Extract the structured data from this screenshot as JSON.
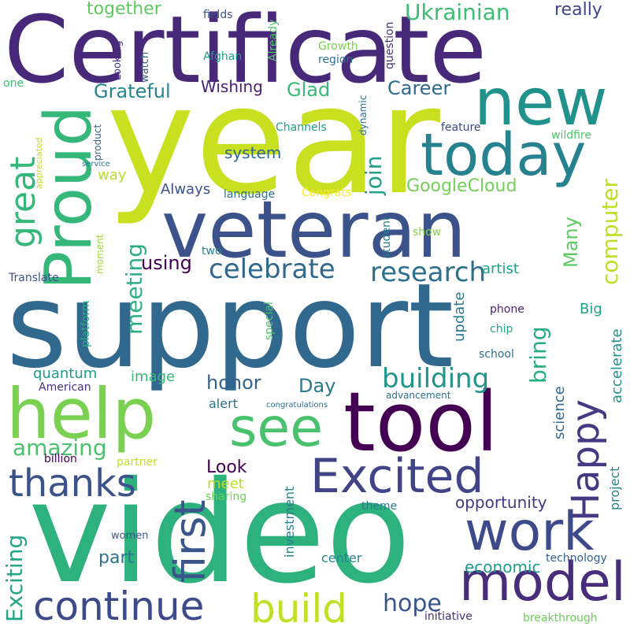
{
  "words": [
    {
      "id": "support",
      "text": "support",
      "color": "#31688e"
    },
    {
      "id": "video",
      "text": "video",
      "color": "#2db27d"
    },
    {
      "id": "year",
      "text": "year",
      "color": "#c8e020"
    },
    {
      "id": "certificate",
      "text": "Certificate",
      "color": "#482878"
    },
    {
      "id": "tool",
      "text": "tool",
      "color": "#440154"
    },
    {
      "id": "veteran",
      "text": "veteran",
      "color": "#3b528b"
    },
    {
      "id": "help",
      "text": "help",
      "color": "#7ad151"
    },
    {
      "id": "new",
      "text": "new",
      "color": "#21918c"
    },
    {
      "id": "proud",
      "text": "Proud",
      "color": "#35b779"
    },
    {
      "id": "today",
      "text": "today",
      "color": "#26828e"
    },
    {
      "id": "model",
      "text": "model",
      "color": "#472d7b"
    },
    {
      "id": "work",
      "text": "work",
      "color": "#3e4a89"
    },
    {
      "id": "excited",
      "text": "Excited",
      "color": "#414487"
    },
    {
      "id": "see",
      "text": "see",
      "color": "#4ac16d"
    },
    {
      "id": "continue",
      "text": "continue",
      "color": "#3e4989"
    },
    {
      "id": "first",
      "text": "first",
      "color": "#3a548c"
    },
    {
      "id": "thanks",
      "text": "thanks",
      "color": "#3b528b"
    },
    {
      "id": "build",
      "text": "build",
      "color": "#c2df23"
    },
    {
      "id": "happy",
      "text": "Happy",
      "color": "#443983"
    },
    {
      "id": "great",
      "text": "great",
      "color": "#35b779"
    },
    {
      "id": "celebrate",
      "text": "celebrate",
      "color": "#31688e"
    },
    {
      "id": "research",
      "text": "research",
      "color": "#2d708e"
    },
    {
      "id": "building",
      "text": "building",
      "color": "#1f958b"
    },
    {
      "id": "computer",
      "text": "computer",
      "color": "#bddf26"
    },
    {
      "id": "meeting",
      "text": "meeting",
      "color": "#2ab07f"
    },
    {
      "id": "ukrainian",
      "text": "Ukrainian",
      "color": "#3dbc74"
    },
    {
      "id": "amazing",
      "text": "amazing",
      "color": "#4ac16d"
    },
    {
      "id": "exciting",
      "text": "Exciting",
      "color": "#21a685"
    },
    {
      "id": "hope",
      "text": "hope",
      "color": "#39568c"
    },
    {
      "id": "bring",
      "text": "bring",
      "color": "#26ad81"
    },
    {
      "id": "join",
      "text": "join",
      "color": "#1fa088"
    },
    {
      "id": "googlecloud",
      "text": "GoogleCloud",
      "color": "#73d056"
    },
    {
      "id": "together",
      "text": "together",
      "color": "#5ec962"
    },
    {
      "id": "really",
      "text": "really",
      "color": "#404688"
    },
    {
      "id": "grateful",
      "text": "Grateful",
      "color": "#25858e"
    },
    {
      "id": "career",
      "text": "Career",
      "color": "#30698e"
    },
    {
      "id": "glad",
      "text": "Glad",
      "color": "#3aba76"
    },
    {
      "id": "many",
      "text": "Many",
      "color": "#5cc863"
    },
    {
      "id": "using",
      "text": "using",
      "color": "#440154"
    },
    {
      "id": "honor",
      "text": "honor",
      "color": "#33638d"
    },
    {
      "id": "day",
      "text": "Day",
      "color": "#2a788e"
    },
    {
      "id": "look",
      "text": "Look",
      "color": "#440154"
    },
    {
      "id": "part",
      "text": "part",
      "color": "#2c738e"
    },
    {
      "id": "opportunity",
      "text": "opportunity",
      "color": "#453781"
    },
    {
      "id": "economic",
      "text": "economic",
      "color": "#1f9a8a"
    },
    {
      "id": "system",
      "text": "system",
      "color": "#31688e"
    },
    {
      "id": "always",
      "text": "Always",
      "color": "#3b528b"
    },
    {
      "id": "quantum",
      "text": "quantum",
      "color": "#1e9c89"
    },
    {
      "id": "wishing",
      "text": "Wishing",
      "color": "#482173"
    },
    {
      "id": "way",
      "text": "way",
      "color": "#b5de2b"
    },
    {
      "id": "update",
      "text": "update",
      "color": "#2a788e"
    },
    {
      "id": "big",
      "text": "Big",
      "color": "#20a386"
    },
    {
      "id": "accelerate",
      "text": "accelerate",
      "color": "#20928c"
    },
    {
      "id": "science",
      "text": "science",
      "color": "#31688e"
    },
    {
      "id": "project",
      "text": "project",
      "color": "#26828e"
    },
    {
      "id": "image",
      "text": "image",
      "color": "#38b977"
    },
    {
      "id": "alert",
      "text": "alert",
      "color": "#2e6e8e"
    },
    {
      "id": "investment",
      "text": "investment",
      "color": "#27808e"
    },
    {
      "id": "meet",
      "text": "meet",
      "color": "#b8de29"
    },
    {
      "id": "center",
      "text": "center",
      "color": "#24878e"
    },
    {
      "id": "technology",
      "text": "technology",
      "color": "#355f8d"
    },
    {
      "id": "artist",
      "text": "artist",
      "color": "#1fa187"
    },
    {
      "id": "translate",
      "text": "Translate",
      "color": "#3b528b"
    },
    {
      "id": "american",
      "text": "American",
      "color": "#46327e"
    },
    {
      "id": "platform",
      "text": "platform",
      "color": "#25ac82"
    },
    {
      "id": "moment",
      "text": "moment",
      "color": "#a2da37"
    },
    {
      "id": "two",
      "text": "two",
      "color": "#26828e"
    },
    {
      "id": "student",
      "text": "student",
      "color": "#2a788e"
    },
    {
      "id": "show",
      "text": "show",
      "color": "#86d549"
    },
    {
      "id": "special",
      "text": "special",
      "color": "#4ec36b"
    },
    {
      "id": "phone",
      "text": "phone",
      "color": "#482173"
    },
    {
      "id": "chip",
      "text": "chip",
      "color": "#20a486"
    },
    {
      "id": "school",
      "text": "school",
      "color": "#2c718e"
    },
    {
      "id": "billion",
      "text": "billion",
      "color": "#440154"
    },
    {
      "id": "partner",
      "text": "partner",
      "color": "#c0df25"
    },
    {
      "id": "sharing",
      "text": "sharing",
      "color": "#6ece58"
    },
    {
      "id": "women",
      "text": "women",
      "color": "#38578c"
    },
    {
      "id": "theme",
      "text": "theme",
      "color": "#2a788e"
    },
    {
      "id": "initiative",
      "text": "initiative",
      "color": "#472f7d"
    },
    {
      "id": "breakthrough",
      "text": "breakthrough",
      "color": "#6ccd5a"
    },
    {
      "id": "advancement",
      "text": "advancement",
      "color": "#2d708e"
    },
    {
      "id": "congratulations",
      "text": "congratulations",
      "color": "#2d708e"
    },
    {
      "id": "fields",
      "text": "fields",
      "color": "#3b528b"
    },
    {
      "id": "already",
      "text": "Already",
      "color": "#52c569"
    },
    {
      "id": "question",
      "text": "question",
      "color": "#46337f"
    },
    {
      "id": "growth",
      "text": "Growth",
      "color": "#7ad151"
    },
    {
      "id": "region",
      "text": "region",
      "color": "#2c728e"
    },
    {
      "id": "afghan",
      "text": "Afghan",
      "color": "#1f9e89"
    },
    {
      "id": "watch",
      "text": "watch",
      "color": "#35608d"
    },
    {
      "id": "looking",
      "text": "Looking",
      "color": "#46337f"
    },
    {
      "id": "one",
      "text": "one",
      "color": "#3dbc74"
    },
    {
      "id": "appreciated",
      "text": "appreciated",
      "color": "#c2df23"
    },
    {
      "id": "product",
      "text": "product",
      "color": "#34608d"
    },
    {
      "id": "service",
      "text": "service",
      "color": "#2a788e"
    },
    {
      "id": "dynamic",
      "text": "dynamic",
      "color": "#2c718e"
    },
    {
      "id": "channels",
      "text": "Channels",
      "color": "#1f9e89"
    },
    {
      "id": "feature",
      "text": "feature",
      "color": "#404688"
    },
    {
      "id": "wildfire",
      "text": "wildfire",
      "color": "#4ec36b"
    },
    {
      "id": "language",
      "text": "language",
      "color": "#2c718e"
    },
    {
      "id": "congrats",
      "text": "Congrats",
      "color": "#fde725"
    }
  ]
}
